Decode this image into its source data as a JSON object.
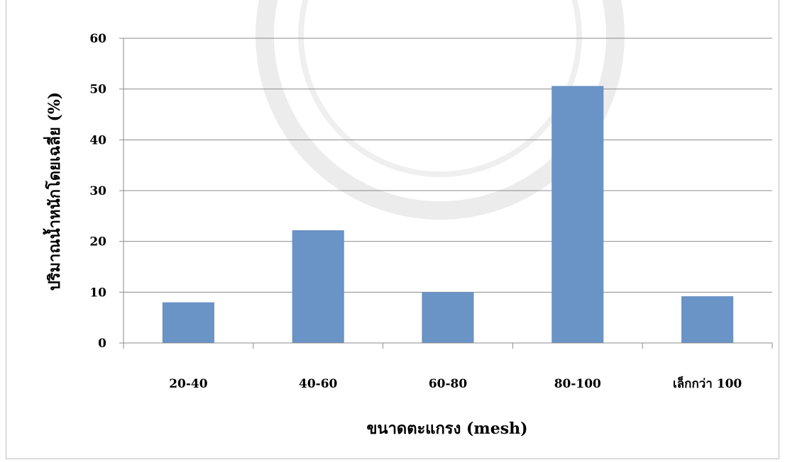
{
  "chart_data": {
    "type": "bar",
    "categories": [
      "20-40",
      "40-60",
      "60-80",
      "80-100",
      "เล็กกว่า 100"
    ],
    "values": [
      8,
      22.2,
      10,
      50.6,
      9.2
    ],
    "xlabel": "ขนาดตะแกรง (mesh)",
    "ylabel": "ปริมาณน้ำหนักโดยเฉลี่ย (%)",
    "ylim": [
      0,
      60
    ],
    "yticks": [
      0,
      10,
      20,
      30,
      40,
      50,
      60
    ],
    "grid": true,
    "legend": "none",
    "bar_color": "#6a93c6",
    "grid_color": "#8c8c8c"
  }
}
